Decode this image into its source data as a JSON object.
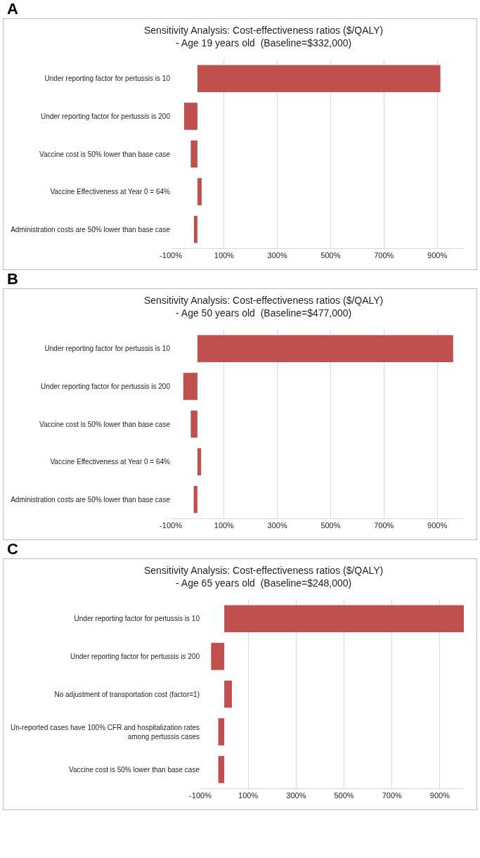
{
  "chart_data": [
    {
      "type": "bar",
      "orientation": "horizontal",
      "title": "Sensitivity Analysis: Cost-effectiveness ratios ($/QALY)\n- Age 19 years old  (Baseline=$332,000)",
      "annotations": [
        "A"
      ],
      "categories": [
        "Under reporting factor for pertussis is 10",
        "Under reporting factor for pertussis is 200",
        "Vaccine cost is 50% lower than base case",
        "Vaccine Effectiveness at Year 0 = 64%",
        "Administration costs are 50% lower than base case"
      ],
      "values": [
        912,
        -50,
        -25,
        16,
        -13
      ],
      "color": "#c0504d",
      "xlim": [
        -100,
        1000
      ],
      "xticks": [
        {
          "value": -100,
          "label": "-100%"
        },
        {
          "value": 100,
          "label": "100%"
        },
        {
          "value": 300,
          "label": "300%"
        },
        {
          "value": 500,
          "label": "500%"
        },
        {
          "value": 700,
          "label": "700%"
        },
        {
          "value": 900,
          "label": "900%"
        }
      ],
      "grid": "x"
    },
    {
      "type": "bar",
      "orientation": "horizontal",
      "title": "Sensitivity Analysis: Cost-effectiveness ratios ($/QALY)\n- Age 50 years old  (Baseline=$477,000)",
      "annotations": [
        "B"
      ],
      "categories": [
        "Under reporting factor for pertussis is 10",
        "Under reporting factor for pertussis is 200",
        "Vaccine cost is 50% lower than base case",
        "Vaccine Effectiveness at Year 0 = 64%",
        "Administration costs are 50% lower than base case"
      ],
      "values": [
        960,
        -53,
        -25,
        14,
        -14
      ],
      "color": "#c0504d",
      "xlim": [
        -100,
        1000
      ],
      "xticks": [
        {
          "value": -100,
          "label": "-100%"
        },
        {
          "value": 100,
          "label": "100%"
        },
        {
          "value": 300,
          "label": "300%"
        },
        {
          "value": 500,
          "label": "500%"
        },
        {
          "value": 700,
          "label": "700%"
        },
        {
          "value": 900,
          "label": "900%"
        }
      ],
      "grid": "x"
    },
    {
      "type": "bar",
      "orientation": "horizontal",
      "title": "Sensitivity Analysis: Cost-effectiveness ratios ($/QALY)\n- Age 65 years old  (Baseline=$248,000)",
      "annotations": [
        "C"
      ],
      "categories": [
        "Under reporting factor for pertussis is 10",
        "Under reporting factor for pertussis is 200",
        "No adjustment of transportation cost (factor=1)",
        "Un-reported cases have 100% CFR and hospitalization rates among pertussis cases",
        "Vaccine cost is 50% lower than base case"
      ],
      "values": [
        1000,
        -55,
        32,
        -25,
        -25
      ],
      "color": "#c0504d",
      "xlim": [
        -100,
        1000
      ],
      "xticks": [
        {
          "value": -100,
          "label": "-100%"
        },
        {
          "value": 100,
          "label": "100%"
        },
        {
          "value": 300,
          "label": "300%"
        },
        {
          "value": 500,
          "label": "500%"
        },
        {
          "value": 700,
          "label": "700%"
        },
        {
          "value": 900,
          "label": "900%"
        }
      ],
      "grid": "x"
    }
  ]
}
